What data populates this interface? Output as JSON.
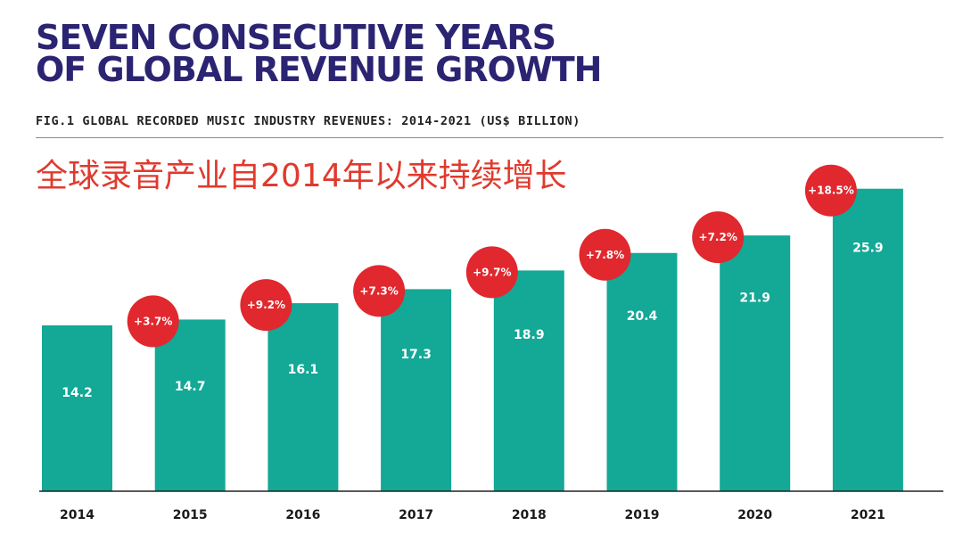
{
  "header": {
    "title_line1": "SEVEN CONSECUTIVE YEARS",
    "title_line2": "OF GLOBAL REVENUE GROWTH",
    "figure_caption": "FIG.1 GLOBAL RECORDED MUSIC INDUSTRY REVENUES: 2014-2021 (US$ BILLION)",
    "chinese_note": "全球录音产业自2014年以来持续增长"
  },
  "colors": {
    "bar": "#14a896",
    "badge": "#e0282e",
    "title": "#2b2472",
    "note": "#e03a2e",
    "axis": "#222222"
  },
  "chart_data": {
    "type": "bar",
    "title": "SEVEN CONSECUTIVE YEARS OF GLOBAL REVENUE GROWTH",
    "subtitle": "FIG.1 GLOBAL RECORDED MUSIC INDUSTRY REVENUES: 2014-2021 (US$ BILLION)",
    "xlabel": "",
    "ylabel": "",
    "categories": [
      "2014",
      "2015",
      "2016",
      "2017",
      "2018",
      "2019",
      "2020",
      "2021"
    ],
    "values": [
      14.2,
      14.7,
      16.1,
      17.3,
      18.9,
      20.4,
      21.9,
      25.9
    ],
    "value_labels": [
      "14.2",
      "14.7",
      "16.1",
      "17.3",
      "18.9",
      "20.4",
      "21.9",
      "25.9"
    ],
    "growth_labels": [
      "",
      "+3.7%",
      "+9.2%",
      "+7.3%",
      "+9.7%",
      "+7.8%",
      "+7.2%",
      "+18.5%"
    ],
    "grid": false,
    "legend": "none"
  }
}
